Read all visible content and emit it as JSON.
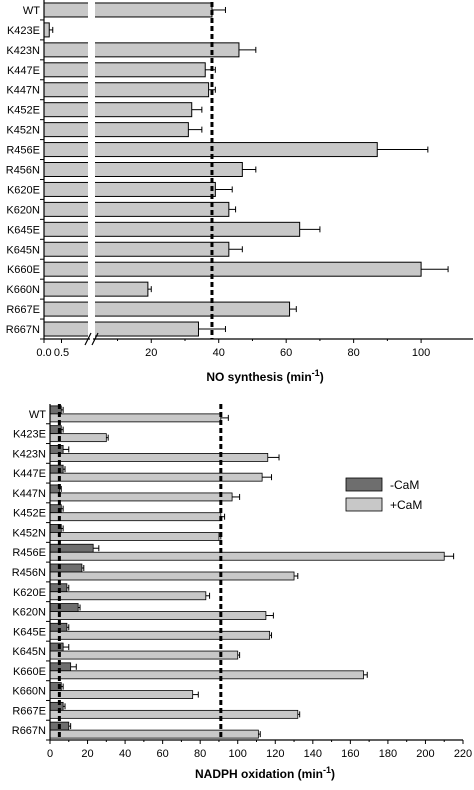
{
  "chart_data": [
    {
      "type": "bar",
      "orientation": "horizontal",
      "categories": [
        "WT",
        "K423E",
        "K423N",
        "K447E",
        "K447N",
        "K452E",
        "K452N",
        "R456E",
        "R456N",
        "K620E",
        "K620N",
        "K645E",
        "K645N",
        "K660E",
        "K660N",
        "R667E",
        "R667N"
      ],
      "series": [
        {
          "values": [
            38,
            0.15,
            46,
            36,
            37,
            32,
            31,
            87,
            47,
            39,
            43,
            64,
            43,
            100,
            19,
            61,
            34
          ],
          "errors": [
            4,
            0.1,
            5,
            3,
            2,
            3,
            4,
            15,
            4,
            5,
            2,
            6,
            4,
            8,
            1,
            2,
            8
          ],
          "color": "#c8c8c8"
        }
      ],
      "reference_line": 38,
      "axis_break": true,
      "xticks_before_break": [
        "0.0",
        "0.5"
      ],
      "xticks_after_break": [
        "20",
        "40",
        "60",
        "80",
        "100"
      ],
      "xlabel_main": "NO synthesis (min",
      "xlabel_sup": "-1",
      "xlabel_tail": ")",
      "xlim": [
        0,
        107
      ]
    },
    {
      "type": "bar",
      "orientation": "horizontal",
      "categories": [
        "WT",
        "K423E",
        "K423N",
        "K447E",
        "K447N",
        "K452E",
        "K452N",
        "R456E",
        "R456N",
        "K620E",
        "K620N",
        "K645E",
        "K645N",
        "K660E",
        "K660N",
        "R667E",
        "R667N"
      ],
      "series": [
        {
          "name": "-CaM",
          "color": "#6e6e6e",
          "values": [
            6,
            6,
            7,
            7,
            5,
            6,
            6,
            23,
            17,
            9,
            15,
            9,
            7,
            11,
            6,
            7,
            10
          ],
          "errors": [
            1,
            1,
            3,
            1,
            1,
            1,
            1,
            3,
            1,
            1,
            1,
            1,
            3,
            3,
            1,
            1,
            1
          ]
        },
        {
          "name": "+CaM",
          "color": "#c8c8c8",
          "values": [
            91,
            30,
            116,
            113,
            97,
            91,
            90,
            210,
            130,
            83,
            115,
            117,
            100,
            167,
            76,
            132,
            111
          ],
          "errors": [
            4,
            1,
            6,
            5,
            4,
            2,
            1,
            5,
            2,
            2,
            4,
            1,
            1,
            2,
            3,
            1,
            1
          ]
        }
      ],
      "reference_lines": [
        5,
        91
      ],
      "xticks": [
        "0",
        "20",
        "40",
        "60",
        "80",
        "100",
        "120",
        "140",
        "160",
        "180",
        "200",
        "220"
      ],
      "xlabel_main": "NADPH oxidation (min",
      "xlabel_sup": "-1",
      "xlabel_tail": ")",
      "xlim": [
        0,
        220
      ],
      "legend_position": "right"
    }
  ]
}
